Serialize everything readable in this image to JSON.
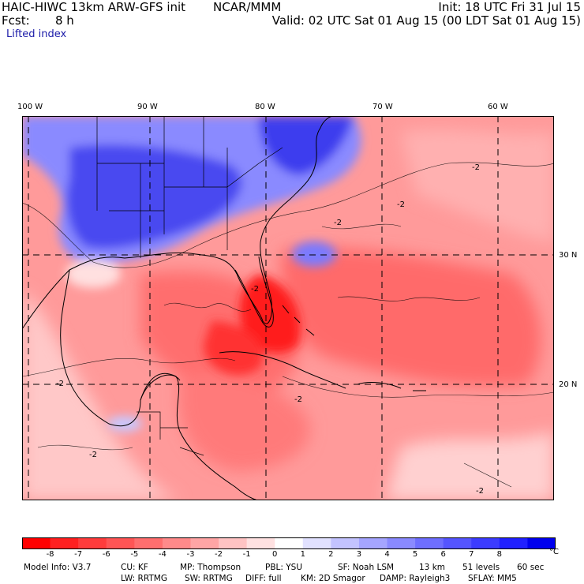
{
  "header": {
    "model_title": "HAIC-HIWC 13km ARW-GFS init",
    "org": "NCAR/MMM",
    "fcst_label": "Fcst:",
    "fcst_value": "8 h",
    "init": "Init: 18 UTC Fri 31 Jul 15",
    "valid": "Valid: 02 UTC Sat 01 Aug 15 (00 LDT Sat 01 Aug 15)",
    "field": "Lifted index"
  },
  "map": {
    "lon_labels": [
      "100 W",
      "90 W",
      "80 W",
      "70 W",
      "60 W"
    ],
    "lat_labels": [
      "30 N",
      "20 N"
    ],
    "contour_label": "-2",
    "colors": {
      "strong_red": "#ff1a1a",
      "mid_red": "#ff5a5a",
      "light_red": "#ff9a9a",
      "pale_red": "#ffd0d0",
      "pale_blue": "#c8c8ff",
      "mid_blue": "#7a7aff",
      "strong_blue": "#3a3aee"
    }
  },
  "colorbar": {
    "labels": [
      "-8",
      "-7",
      "-6",
      "-5",
      "-4",
      "-3",
      "-2",
      "-1",
      "0",
      "1",
      "2",
      "3",
      "4",
      "5",
      "6",
      "7",
      "8"
    ],
    "unit": "°C",
    "colors": [
      "#ff0000",
      "#ff2020",
      "#ff3c3c",
      "#ff5555",
      "#ff6e6e",
      "#ff8a8a",
      "#ffa5a5",
      "#ffc3c3",
      "#ffe1e1",
      "#ffffff",
      "#e1e1ff",
      "#c3c3ff",
      "#a5a5ff",
      "#8a8aff",
      "#6e6eff",
      "#5555ff",
      "#3c3cff",
      "#2020ff",
      "#0000ee"
    ]
  },
  "model_info": {
    "line1": [
      "Model Info: V3.7",
      "CU: KF",
      "MP: Thompson",
      "PBL: YSU",
      "SF: Noah LSM",
      "13 km",
      "51 levels",
      "60 sec"
    ],
    "line2": [
      "LW: RRTMG",
      "SW: RRTMG",
      "DIFF: full",
      "KM: 2D Smagor",
      "DAMP: Rayleigh3",
      "SFLAY: MM5"
    ]
  }
}
